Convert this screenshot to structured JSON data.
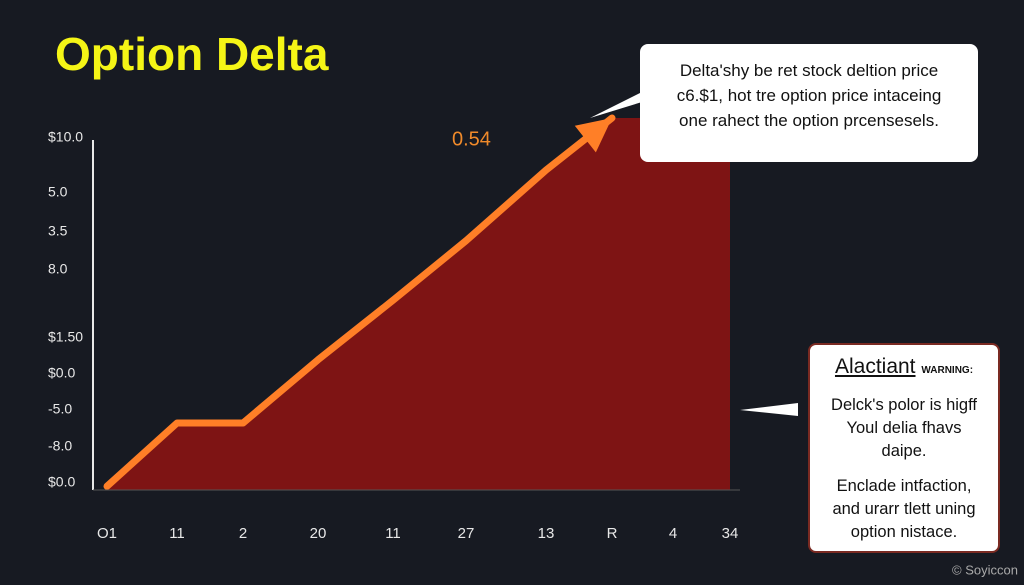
{
  "chart_data": {
    "type": "area",
    "title": "Option Delta",
    "annotation": "0.54",
    "categories": [
      "O1",
      "11",
      "2",
      "20",
      "11",
      "27",
      "13",
      "R",
      "4",
      "34"
    ],
    "y_labels": [
      "$10.0",
      "5.0",
      "3.5",
      "8.0",
      "$1.50",
      "$0.0",
      "-5.0",
      "-8.0",
      "$0.0"
    ],
    "series": [
      {
        "color": "#7e1414",
        "values": [
          1,
          18,
          18,
          35,
          51,
          67,
          86,
          100,
          100,
          100
        ]
      },
      {
        "color": "#ff7f27",
        "values": [
          1,
          18,
          18,
          35,
          51,
          67,
          86,
          100,
          null,
          null
        ]
      }
    ],
    "ylim": [
      0,
      100
    ],
    "callout": {
      "lines": [
        "Delta'shy be ret stock deltion price",
        "c6.$1, hot tre option price intaceing",
        "one rahect the option prcensesels."
      ]
    },
    "warning": {
      "heading": "Alactiant",
      "tag": "WARNING:",
      "lines1": [
        "Delck's polor is higff",
        "Youl delia fhavs",
        "daipe."
      ],
      "lines2": [
        "Enclade intfaction,",
        "and urarr tlett uning",
        "option nistace."
      ]
    },
    "watermark": "© Soyiccon"
  }
}
